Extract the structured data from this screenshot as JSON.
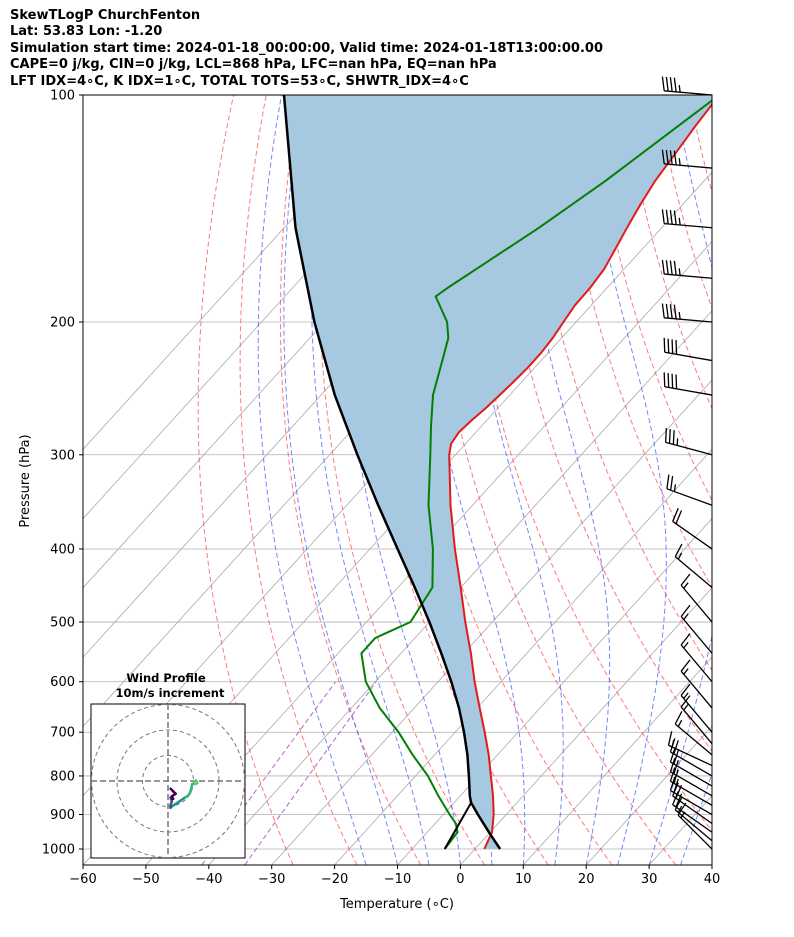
{
  "header": {
    "station": "SkewTLogP ChurchFenton",
    "latlon": "Lat: 53.83   Lon: -1.20",
    "times": "Simulation start time: 2024-01-18_00:00:00, Valid time: 2024-01-18T13:00:00.00",
    "parcel": "CAPE=0 j/kg, CIN=0 j/kg, LCL=868 hPa, LFC=nan hPa, EQ=nan hPa",
    "indices": "LFT IDX=4∘C, K IDX=1∘C, TOTAL TOTS=53∘C, SHWTR_IDX=4∘C"
  },
  "chart_data": {
    "type": "line",
    "xlabel": "Temperature (∘C)",
    "ylabel": "Pressure (hPa)",
    "xlim": [
      -60,
      40
    ],
    "ylim": [
      1050,
      100
    ],
    "y_scale": "log",
    "x_ticks": [
      -60,
      -50,
      -40,
      -30,
      -20,
      -10,
      0,
      10,
      20,
      30,
      40
    ],
    "x_tick_labels": [
      "−60",
      "−50",
      "−40",
      "−30",
      "−20",
      "−10",
      "0",
      "10",
      "20",
      "30",
      "40"
    ],
    "y_ticks": [
      1000,
      900,
      800,
      700,
      600,
      500,
      400,
      300,
      200,
      100
    ],
    "y_tick_labels": [
      "1000",
      "900",
      "800",
      "700",
      "600",
      "500",
      "400",
      "300",
      "200",
      "100"
    ],
    "grid": true,
    "colors": {
      "temperature": "#e31a1c",
      "dewpoint": "#008000",
      "parcel": "#000000",
      "cape_fill": "#a6c8e0",
      "dry_adiabat": "#ff4040",
      "moist_adiabat": "#4060ff",
      "isotherm": "#aaaaaa",
      "mixing_ratio": "#a040c0"
    },
    "series": [
      {
        "key": "temperature",
        "pressure": [
          1000,
          950,
          900,
          850,
          800,
          750,
          700,
          650,
          600,
          550,
          500,
          450,
          400,
          350,
          300,
          290,
          280,
          270,
          260,
          250,
          240,
          230,
          220,
          210,
          200,
          190,
          180,
          170,
          160,
          150,
          140,
          130,
          120,
          110,
          100
        ],
        "temperature": [
          1.5,
          0.3,
          -2.0,
          -4.8,
          -8.0,
          -11.4,
          -15.3,
          -19.6,
          -24.2,
          -28.9,
          -34.3,
          -40.0,
          -46.5,
          -53.5,
          -61.0,
          -62.3,
          -62.7,
          -62.4,
          -61.9,
          -61.6,
          -61.3,
          -61.1,
          -61.1,
          -61.4,
          -62.0,
          -62.6,
          -62.7,
          -63.2,
          -64.3,
          -65.5,
          -66.7,
          -67.8,
          -68.5,
          -69.3,
          -70.0
        ]
      },
      {
        "key": "dewpoint",
        "pressure": [
          1000,
          950,
          925,
          900,
          850,
          800,
          750,
          700,
          650,
          600,
          550,
          525,
          500,
          450,
          400,
          350,
          300,
          275,
          250,
          225,
          210,
          200,
          185,
          180,
          170,
          150,
          130,
          100
        ],
        "temperature": [
          -4.8,
          -5.2,
          -6.7,
          -9.0,
          -13.5,
          -18.0,
          -23.5,
          -29.0,
          -35.5,
          -41.5,
          -46.3,
          -46.3,
          -43.0,
          -44.5,
          -50.0,
          -57.0,
          -64.0,
          -68.0,
          -72.2,
          -75.7,
          -78.0,
          -80.5,
          -86.0,
          -85.3,
          -83.5,
          -79.5,
          -75.7,
          -70.0
        ]
      },
      {
        "key": "parcel",
        "pressure": [
          1000,
          950,
          900,
          868,
          850,
          800,
          750,
          700,
          650,
          600,
          550,
          500,
          450,
          400,
          350,
          300,
          250,
          200,
          150,
          100
        ],
        "temperature": [
          4.0,
          -0.2,
          -4.5,
          -7.3,
          -8.5,
          -11.5,
          -14.8,
          -18.6,
          -22.9,
          -27.9,
          -33.6,
          -40.0,
          -47.3,
          -55.6,
          -65.0,
          -75.6,
          -87.8,
          -101.6,
          -118.2,
          -139.2
        ]
      },
      {
        "key": "parcel_dry_segment",
        "pressure": [
          1000,
          868
        ],
        "temperature": [
          -4.8,
          -7.3
        ]
      }
    ],
    "cape_fill": true,
    "background_lines": {
      "isotherms_degC": [
        -120,
        -110,
        -100,
        -90,
        -80,
        -70,
        -60,
        -50,
        -40,
        -30,
        -20,
        -10,
        0,
        10,
        20,
        30,
        40
      ],
      "dry_adiabats_degC": [
        -30,
        -20,
        -10,
        0,
        10,
        20,
        30,
        40,
        50,
        60,
        70,
        80,
        90,
        100,
        110
      ],
      "moist_adiabats_degC": [
        -15,
        -10,
        -5,
        0,
        5,
        10,
        15,
        20,
        25,
        30,
        35
      ],
      "mixing_ratio_p_top_hPa": 600,
      "mixing_ratio_g_kg": [
        0.1,
        0.2
      ]
    },
    "wind_barbs": {
      "pressure_hPa": [
        1000,
        975,
        950,
        925,
        900,
        875,
        850,
        825,
        800,
        775,
        750,
        725,
        700,
        650,
        600,
        550,
        500,
        450,
        400,
        350,
        300,
        250,
        225,
        200,
        175,
        150,
        125,
        100
      ],
      "speed_kt": [
        14,
        16,
        18,
        20,
        22,
        22,
        22,
        20,
        18,
        16,
        15,
        15,
        15,
        15,
        15,
        15,
        15,
        15,
        18,
        25,
        35,
        40,
        40,
        45,
        45,
        45,
        45,
        45
      ],
      "direction_deg": [
        315,
        310,
        305,
        305,
        300,
        300,
        300,
        300,
        300,
        295,
        310,
        320,
        320,
        320,
        320,
        320,
        320,
        310,
        305,
        290,
        285,
        280,
        280,
        275,
        275,
        275,
        275,
        275
      ]
    },
    "hodograph": {
      "title": "Wind Profile",
      "subtitle": "10m/s increment",
      "rings_ms": [
        10,
        20,
        30
      ],
      "u_ms": [
        10.5,
        11.0,
        11.5,
        10.8,
        10.0,
        9.5,
        9.0,
        8.7,
        8.0,
        6.2,
        4.5,
        3.0,
        1.5,
        1.0,
        1.0,
        1.5,
        1.0,
        1.5,
        2.0,
        1.5,
        3.0,
        2.0,
        1.0
      ],
      "v_ms": [
        0.0,
        0.2,
        -0.8,
        -1.2,
        -1.0,
        -1.2,
        -3.5,
        -4.5,
        -5.6,
        -6.8,
        -8.0,
        -9.0,
        -10.0,
        -10.5,
        -9.5,
        -8.0,
        -6.5,
        -7.0,
        -7.0,
        -6.0,
        -5.0,
        -4.0,
        -3.0
      ],
      "colormap": [
        "#440154",
        "#3b528b",
        "#21918c",
        "#35b779",
        "#5ec962"
      ]
    }
  }
}
